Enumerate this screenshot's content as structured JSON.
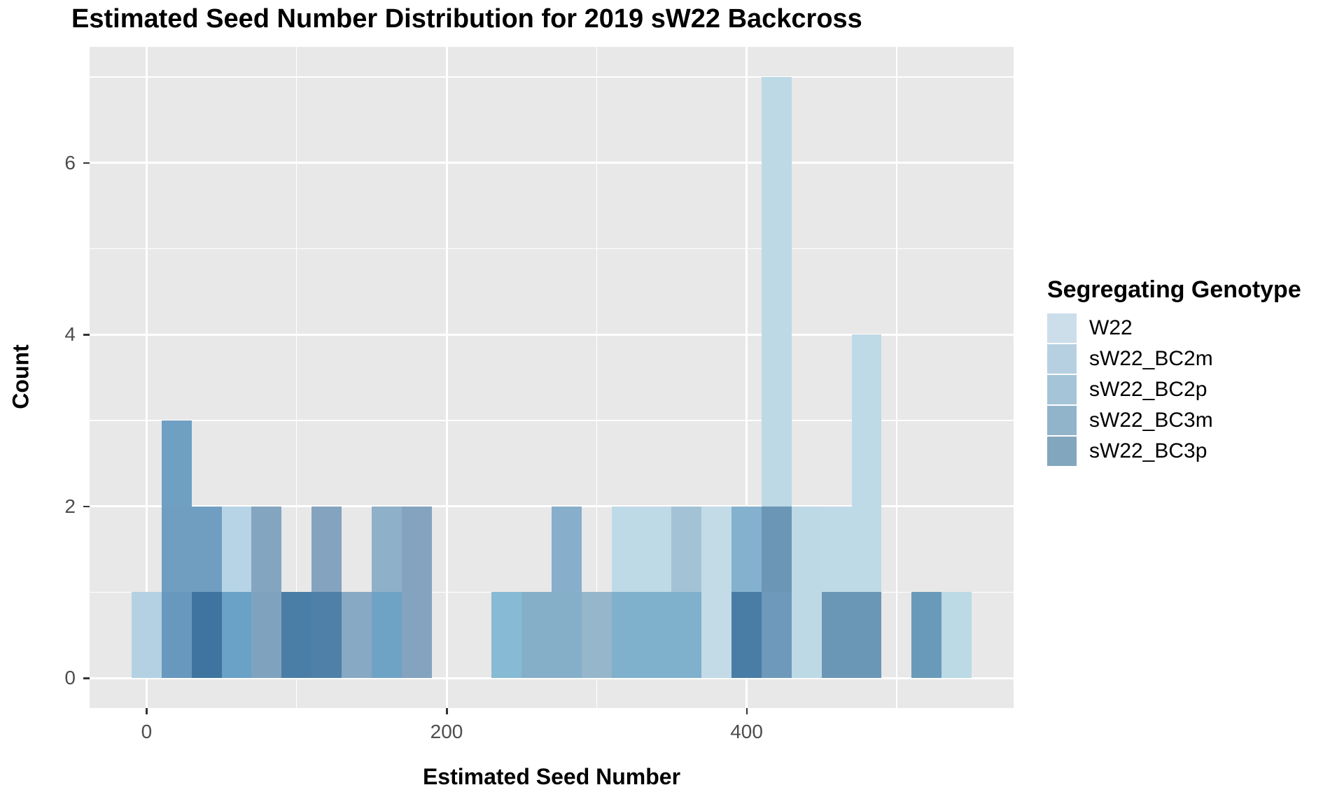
{
  "chart": {
    "title": "Estimated Seed Number Distribution for 2019 sW22 Backcross",
    "xlabel": "Estimated Seed Number",
    "ylabel": "Count",
    "legend_title": "Segregating Genotype"
  },
  "chart_data": {
    "type": "bar",
    "subtype": "overlapping-histogram",
    "title": "Estimated Seed Number Distribution for 2019 sW22 Backcross",
    "xlabel": "Estimated Seed Number",
    "ylabel": "Count",
    "binwidth": 20,
    "xlim": [
      -38,
      578
    ],
    "ylim": [
      -0.35,
      7.35
    ],
    "x_ticks": [
      0,
      200,
      400
    ],
    "x_tick_labels": [
      "0",
      "200",
      "400"
    ],
    "x_minor_ticks": [
      100,
      300,
      500
    ],
    "y_ticks": [
      0,
      2,
      4,
      6
    ],
    "y_tick_labels": [
      "0",
      "2",
      "4",
      "6"
    ],
    "y_minor_ticks": [
      1,
      3,
      5,
      7
    ],
    "grid": true,
    "panel_color": "#E8E8E8",
    "legend_position": "right",
    "legend_title": "Segregating Genotype",
    "legend": [
      {
        "label": "W22",
        "color": "#CBDEEA"
      },
      {
        "label": "sW22_BC2m",
        "color": "#B7D0E1"
      },
      {
        "label": "sW22_BC2p",
        "color": "#A5C4D8"
      },
      {
        "label": "sW22_BC3m",
        "color": "#92B4CB"
      },
      {
        "label": "sW22_BC3p",
        "color": "#83A6BF"
      }
    ],
    "bars": [
      {
        "x0": -10,
        "x1": 10,
        "segments": [
          {
            "y0": 0,
            "y1": 1,
            "color": "#B3D1E3"
          }
        ]
      },
      {
        "x0": 10,
        "x1": 30,
        "segments": [
          {
            "y0": 0,
            "y1": 1,
            "color": "#6898BE"
          },
          {
            "y0": 1,
            "y1": 2,
            "color": "#6F9EC1"
          },
          {
            "y0": 2,
            "y1": 3,
            "color": "#6FA0C3"
          }
        ]
      },
      {
        "x0": 30,
        "x1": 50,
        "segments": [
          {
            "y0": 0,
            "y1": 1,
            "color": "#3F74A0"
          },
          {
            "y0": 1,
            "y1": 2,
            "color": "#6F9EC1"
          }
        ]
      },
      {
        "x0": 50,
        "x1": 70,
        "segments": [
          {
            "y0": 0,
            "y1": 1,
            "color": "#6AA1C6"
          },
          {
            "y0": 1,
            "y1": 2,
            "color": "#B7D4E6"
          }
        ]
      },
      {
        "x0": 70,
        "x1": 90,
        "segments": [
          {
            "y0": 0,
            "y1": 1,
            "color": "#7FA3BF"
          },
          {
            "y0": 1,
            "y1": 2,
            "color": "#84A5C0"
          }
        ]
      },
      {
        "x0": 90,
        "x1": 110,
        "segments": [
          {
            "y0": 0,
            "y1": 1,
            "color": "#4B7EA6"
          }
        ]
      },
      {
        "x0": 110,
        "x1": 130,
        "segments": [
          {
            "y0": 0,
            "y1": 1,
            "color": "#4F81A8"
          },
          {
            "y0": 1,
            "y1": 2,
            "color": "#84A3BE"
          }
        ]
      },
      {
        "x0": 130,
        "x1": 150,
        "segments": [
          {
            "y0": 0,
            "y1": 1,
            "color": "#87A9C4"
          }
        ]
      },
      {
        "x0": 150,
        "x1": 170,
        "segments": [
          {
            "y0": 0,
            "y1": 1,
            "color": "#6FA3C6"
          },
          {
            "y0": 1,
            "y1": 2,
            "color": "#8FB0C9"
          }
        ]
      },
      {
        "x0": 170,
        "x1": 190,
        "segments": [
          {
            "y0": 0,
            "y1": 2,
            "color": "#84A3BE"
          }
        ]
      },
      {
        "x0": 230,
        "x1": 250,
        "segments": [
          {
            "y0": 0,
            "y1": 1,
            "color": "#87BAD4"
          }
        ]
      },
      {
        "x0": 250,
        "x1": 270,
        "segments": [
          {
            "y0": 0,
            "y1": 1,
            "color": "#85AFC9"
          }
        ]
      },
      {
        "x0": 270,
        "x1": 290,
        "segments": [
          {
            "y0": 0,
            "y1": 1,
            "color": "#85AFC9"
          },
          {
            "y0": 1,
            "y1": 2,
            "color": "#87AECB"
          }
        ]
      },
      {
        "x0": 290,
        "x1": 310,
        "segments": [
          {
            "y0": 0,
            "y1": 1,
            "color": "#96B6CB"
          }
        ]
      },
      {
        "x0": 310,
        "x1": 330,
        "segments": [
          {
            "y0": 0,
            "y1": 1,
            "color": "#7FB0CC"
          },
          {
            "y0": 1,
            "y1": 2,
            "color": "#BFDAE7"
          }
        ]
      },
      {
        "x0": 330,
        "x1": 350,
        "segments": [
          {
            "y0": 0,
            "y1": 1,
            "color": "#7FB0CC"
          },
          {
            "y0": 1,
            "y1": 2,
            "color": "#BFDAE7"
          }
        ]
      },
      {
        "x0": 350,
        "x1": 370,
        "segments": [
          {
            "y0": 0,
            "y1": 1,
            "color": "#7FB0CC"
          },
          {
            "y0": 1,
            "y1": 2,
            "color": "#A3C2D6"
          }
        ]
      },
      {
        "x0": 370,
        "x1": 390,
        "segments": [
          {
            "y0": 0,
            "y1": 2,
            "color": "#C2DBE7"
          }
        ]
      },
      {
        "x0": 390,
        "x1": 410,
        "segments": [
          {
            "y0": 0,
            "y1": 1,
            "color": "#4A7DA6"
          },
          {
            "y0": 1,
            "y1": 2,
            "color": "#83B1CE"
          }
        ]
      },
      {
        "x0": 410,
        "x1": 430,
        "segments": [
          {
            "y0": 0,
            "y1": 1,
            "color": "#6E99BA"
          },
          {
            "y0": 1,
            "y1": 2,
            "color": "#6C96B5"
          },
          {
            "y0": 2,
            "y1": 7,
            "color": "#BDD9E6"
          }
        ]
      },
      {
        "x0": 430,
        "x1": 450,
        "segments": [
          {
            "y0": 0,
            "y1": 2,
            "color": "#BDD9E6"
          }
        ]
      },
      {
        "x0": 450,
        "x1": 470,
        "segments": [
          {
            "y0": 0,
            "y1": 1,
            "color": "#6B97B7"
          },
          {
            "y0": 1,
            "y1": 2,
            "color": "#BFDAE7"
          }
        ]
      },
      {
        "x0": 470,
        "x1": 490,
        "segments": [
          {
            "y0": 0,
            "y1": 1,
            "color": "#6B97B7"
          },
          {
            "y0": 1,
            "y1": 4,
            "color": "#BFDAE7"
          }
        ]
      },
      {
        "x0": 510,
        "x1": 530,
        "segments": [
          {
            "y0": 0,
            "y1": 1,
            "color": "#6A9ABA"
          }
        ]
      },
      {
        "x0": 530,
        "x1": 550,
        "segments": [
          {
            "y0": 0,
            "y1": 1,
            "color": "#BBDAE5"
          }
        ]
      }
    ]
  }
}
